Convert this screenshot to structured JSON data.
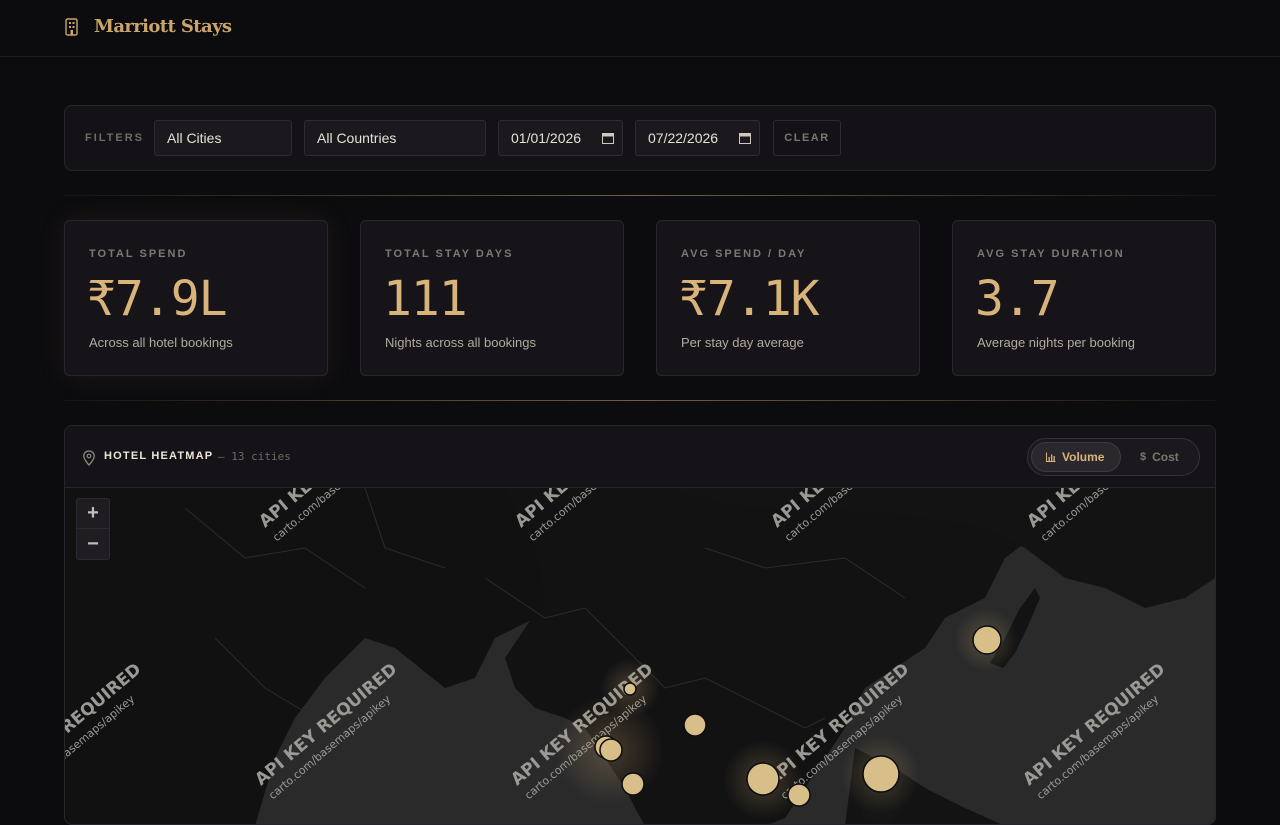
{
  "app": {
    "title": "Marriott Stays",
    "icon": "hotel-building-icon"
  },
  "filters": {
    "label": "FILTERS",
    "city": "All Cities",
    "country": "All Countries",
    "date_from": "01/01/2026",
    "date_to": "07/22/2026",
    "clear_label": "CLEAR"
  },
  "stats": [
    {
      "label": "TOTAL SPEND",
      "value": "₹7.9L",
      "sub": "Across all hotel bookings"
    },
    {
      "label": "TOTAL STAY DAYS",
      "value": "111",
      "sub": "Nights across all bookings"
    },
    {
      "label": "AVG SPEND / DAY",
      "value": "₹7.1K",
      "sub": "Per stay day average"
    },
    {
      "label": "AVG STAY DURATION",
      "value": "3.7",
      "sub": "Average nights per booking"
    }
  ],
  "map": {
    "title": "HOTEL HEATMAP",
    "count": "— 13 cities",
    "icon": "map-pin-icon",
    "modes": [
      {
        "label": "Volume",
        "icon": "bar-chart-icon",
        "active": true
      },
      {
        "label": "Cost",
        "icon": "dollar-icon",
        "active": false
      }
    ],
    "zoom_in": "+",
    "zoom_out": "−",
    "watermark_title": "API KEY REQUIRED",
    "watermark_sub": "carto.com/basemaps/apikey"
  },
  "colors": {
    "accent": "#c9a56b",
    "bubble": "#d8bf8a",
    "background": "#0c0b0e"
  }
}
